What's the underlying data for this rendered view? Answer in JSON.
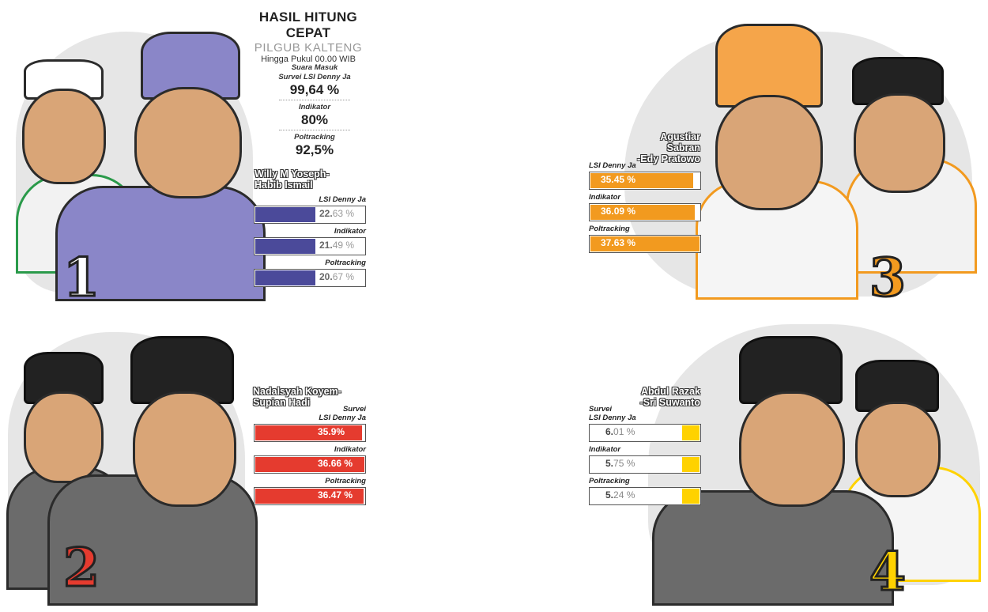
{
  "header": {
    "title": "HASIL HITUNG CEPAT",
    "subtitle": "PILGUB KALTENG",
    "time_note": "Hingga Pukul 00.00 WIB"
  },
  "data_in": [
    {
      "label_line1": "Suara Masuk",
      "label_line2": "Survei LSI Denny Ja",
      "value": "99,64 %"
    },
    {
      "label_line1": "Indikator",
      "label_line2": "",
      "value": "80%"
    },
    {
      "label_line1": "Poltracking",
      "label_line2": "",
      "value": "92,5%"
    }
  ],
  "colors": {
    "c1": "#4b4a9a",
    "c2": "#e53b2f",
    "c3": "#f29a1f",
    "c4": "#ffd200"
  },
  "chart_data": {
    "type": "bar",
    "title": "HASIL HITUNG CEPAT",
    "subtitle": "PILGUB KALTENG",
    "categories": [
      "LSI Denny Ja",
      "Indikator",
      "Poltracking"
    ],
    "candidates": [
      {
        "number": "1",
        "name_line1": "Willy M Yoseph-",
        "name_line2": "Habib Ismail",
        "color": "#4b4a9a",
        "label_style": "light",
        "surveys": [
          {
            "label_a": "",
            "label_b": "LSI Denny Ja",
            "value": 22.63,
            "text_int": "22.",
            "text_dec": "63 %"
          },
          {
            "label_a": "",
            "label_b": "Indikator",
            "value": 21.49,
            "text_int": "21.",
            "text_dec": "49 %"
          },
          {
            "label_a": "",
            "label_b": "Poltracking",
            "value": 20.67,
            "text_int": "20.",
            "text_dec": "67 %"
          }
        ]
      },
      {
        "number": "2",
        "name_line1": "Nadalsyah Koyem-",
        "name_line2": "Supian Hadi",
        "color": "#e53b2f",
        "label_style": "full",
        "surveys": [
          {
            "label_a": "Survei",
            "label_b": "LSI Denny Ja",
            "value": 35.9,
            "text_int": "35.",
            "text_dec": "9%"
          },
          {
            "label_a": "",
            "label_b": "Indikator",
            "value": 36.66,
            "text_int": "36.",
            "text_dec": "66 %"
          },
          {
            "label_a": "",
            "label_b": "Poltracking",
            "value": 36.47,
            "text_int": "36.",
            "text_dec": "47 %"
          }
        ]
      },
      {
        "number": "3",
        "name_line1": "Agustiar Sabran",
        "name_line2": "-Edy Pratowo",
        "color": "#f29a1f",
        "label_style": "full",
        "surveys": [
          {
            "label_a": "",
            "label_b": "LSI Denny Ja",
            "value": 35.45,
            "text_int": "35.",
            "text_dec": "45 %"
          },
          {
            "label_a": "",
            "label_b": "Indikator",
            "value": 36.09,
            "text_int": "36.",
            "text_dec": "09 %"
          },
          {
            "label_a": "",
            "label_b": "Poltracking",
            "value": 37.63,
            "text_int": "37.",
            "text_dec": "63 %"
          }
        ]
      },
      {
        "number": "4",
        "name_line1": "Abdul Razak",
        "name_line2": "-Sri Suwanto",
        "color": "#ffd200",
        "label_style": "small",
        "surveys": [
          {
            "label_a": "Survei",
            "label_b": "LSI Denny Ja",
            "value": 6.01,
            "text_int": "6.",
            "text_dec": "01 %"
          },
          {
            "label_a": "",
            "label_b": "Indikator",
            "value": 5.75,
            "text_int": "5.",
            "text_dec": "75 %"
          },
          {
            "label_a": "",
            "label_b": "Poltracking",
            "value": 5.24,
            "text_int": "5.",
            "text_dec": "24 %"
          }
        ]
      }
    ]
  }
}
